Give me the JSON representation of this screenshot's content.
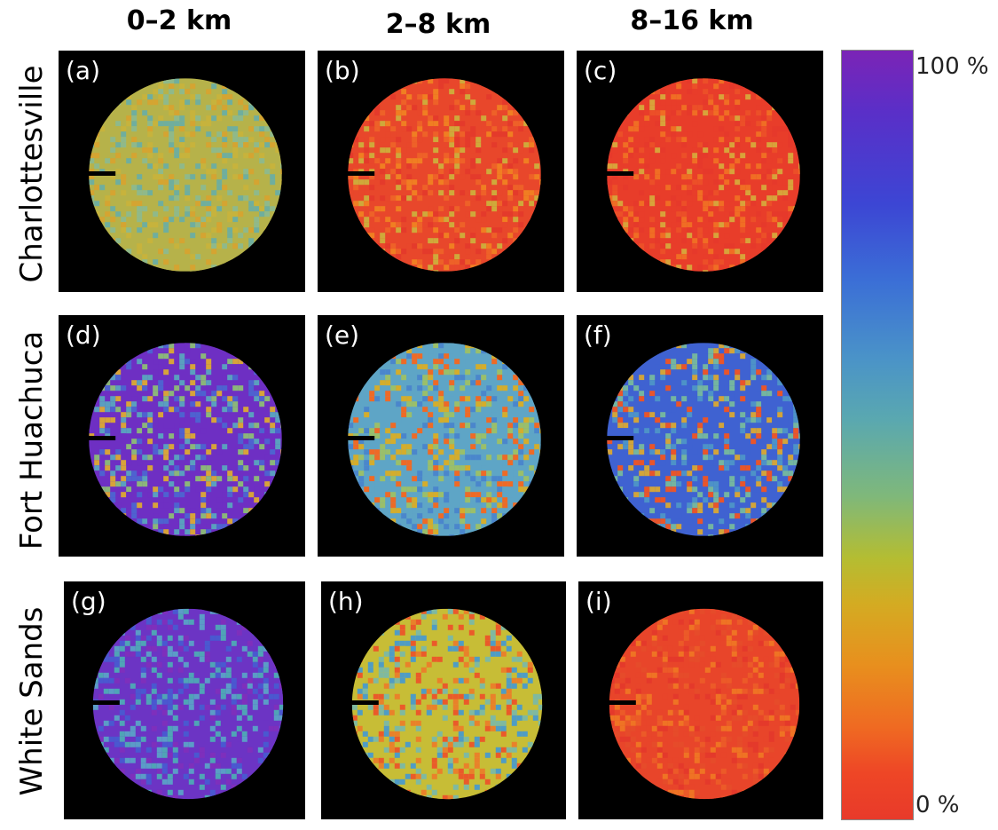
{
  "columns": [
    "0–2 km",
    "2–8 km",
    "8–16 km"
  ],
  "rows": [
    "Charlottesville",
    "Fort Huachuca",
    "White Sands"
  ],
  "panels": [
    {
      "label": "(a)",
      "palette": [
        "#b6b24a",
        "#8fb98a",
        "#d5a431",
        "#6fae9e",
        "#c7b33c"
      ]
    },
    {
      "label": "(b)",
      "palette": [
        "#e8472b",
        "#ee6128",
        "#f07e22",
        "#e43a2b",
        "#cfa93a"
      ]
    },
    {
      "label": "(c)",
      "palette": [
        "#e83d2a",
        "#ec4f28",
        "#f06d24",
        "#e6392b",
        "#d8a23a"
      ]
    },
    {
      "label": "(d)",
      "palette": [
        "#6e2fc3",
        "#4e62d0",
        "#5a9fbf",
        "#d7a33a",
        "#8bb67a"
      ]
    },
    {
      "label": "(e)",
      "palette": [
        "#5ea5c6",
        "#9abf6a",
        "#d4ad2c",
        "#4a86cc",
        "#ee6a26"
      ]
    },
    {
      "label": "(f)",
      "palette": [
        "#3f62d1",
        "#4d92c8",
        "#74b5a0",
        "#d2a43a",
        "#e9552a"
      ]
    },
    {
      "label": "(g)",
      "palette": [
        "#6c34c4",
        "#4a58d0",
        "#5b9cc7",
        "#7e2fbc",
        "#4fa4b6"
      ]
    },
    {
      "label": "(h)",
      "palette": [
        "#c7bd36",
        "#e9812a",
        "#7fb9a0",
        "#ea5a2a",
        "#4f9cc5"
      ]
    },
    {
      "label": "(i)",
      "palette": [
        "#e8452a",
        "#ec5a28",
        "#e4392b",
        "#ef7324",
        "#e64b2a"
      ]
    }
  ],
  "colorbar": {
    "max_label": "100 %",
    "min_label": "0 %"
  }
}
